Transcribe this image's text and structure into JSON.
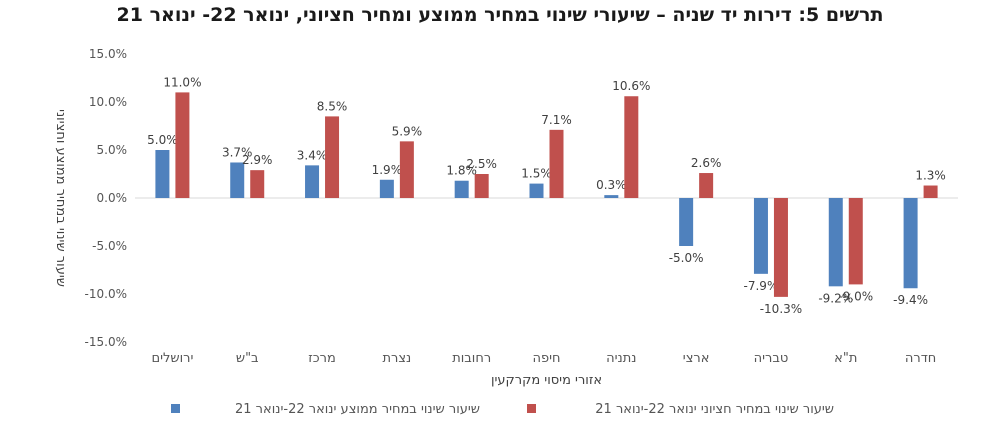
{
  "chart_data": {
    "type": "bar",
    "title": "תרשים 5: דירות יד שניה – שיעורי שינוי במחיר ממוצע ומחיר חציוני, ינואר 22- ינואר 21",
    "xlabel": "אזורי מיסוי מקרקעין",
    "ylabel": "שיעור שינוי במחיר ממוצע וחציוני",
    "categories": [
      "ירושלים",
      "ב\"ש",
      "מרכז",
      "נצרת",
      "רחובות",
      "חיפה",
      "נתניה",
      "ארצי",
      "טבריה",
      "ת\"א",
      "חדרה"
    ],
    "series": [
      {
        "name": "שיעור שינוי במחיר ממוצע ינואר 22-ינואר 21",
        "color": "#4f81bd",
        "values": [
          5.0,
          3.7,
          3.4,
          1.9,
          1.8,
          1.5,
          0.3,
          -5.0,
          -7.9,
          -9.2,
          -9.4
        ]
      },
      {
        "name": "שיעור שינוי במחיר חציוני ינואר 22-ינואר 21",
        "color": "#c0504d",
        "values": [
          11.0,
          2.9,
          8.5,
          5.9,
          2.5,
          7.1,
          10.6,
          2.6,
          -10.3,
          -9.0,
          1.3
        ]
      }
    ],
    "ylim": [
      -15,
      15
    ],
    "yticks": [
      15,
      10,
      5,
      0,
      -5,
      -10,
      -15
    ],
    "ytick_labels": [
      "15.0%",
      "10.0%",
      "5.0%",
      "0.0%",
      "-5.0%",
      "-10.0%",
      "-15.0%"
    ],
    "data_labels": [
      [
        "5.0%",
        "3.7%",
        "3.4%",
        "1.9%",
        "1.8%",
        "1.5%",
        "0.3%",
        "-5.0%",
        "-7.9%",
        "-9.2%",
        "-9.4%"
      ],
      [
        "11.0%",
        "2.9%",
        "8.5%",
        "5.9%",
        "2.5%",
        "7.1%",
        "10.6%",
        "2.6%",
        "-10.3%",
        "-9.0%",
        "1.3%"
      ]
    ],
    "grid": false,
    "legend_position": "bottom"
  }
}
